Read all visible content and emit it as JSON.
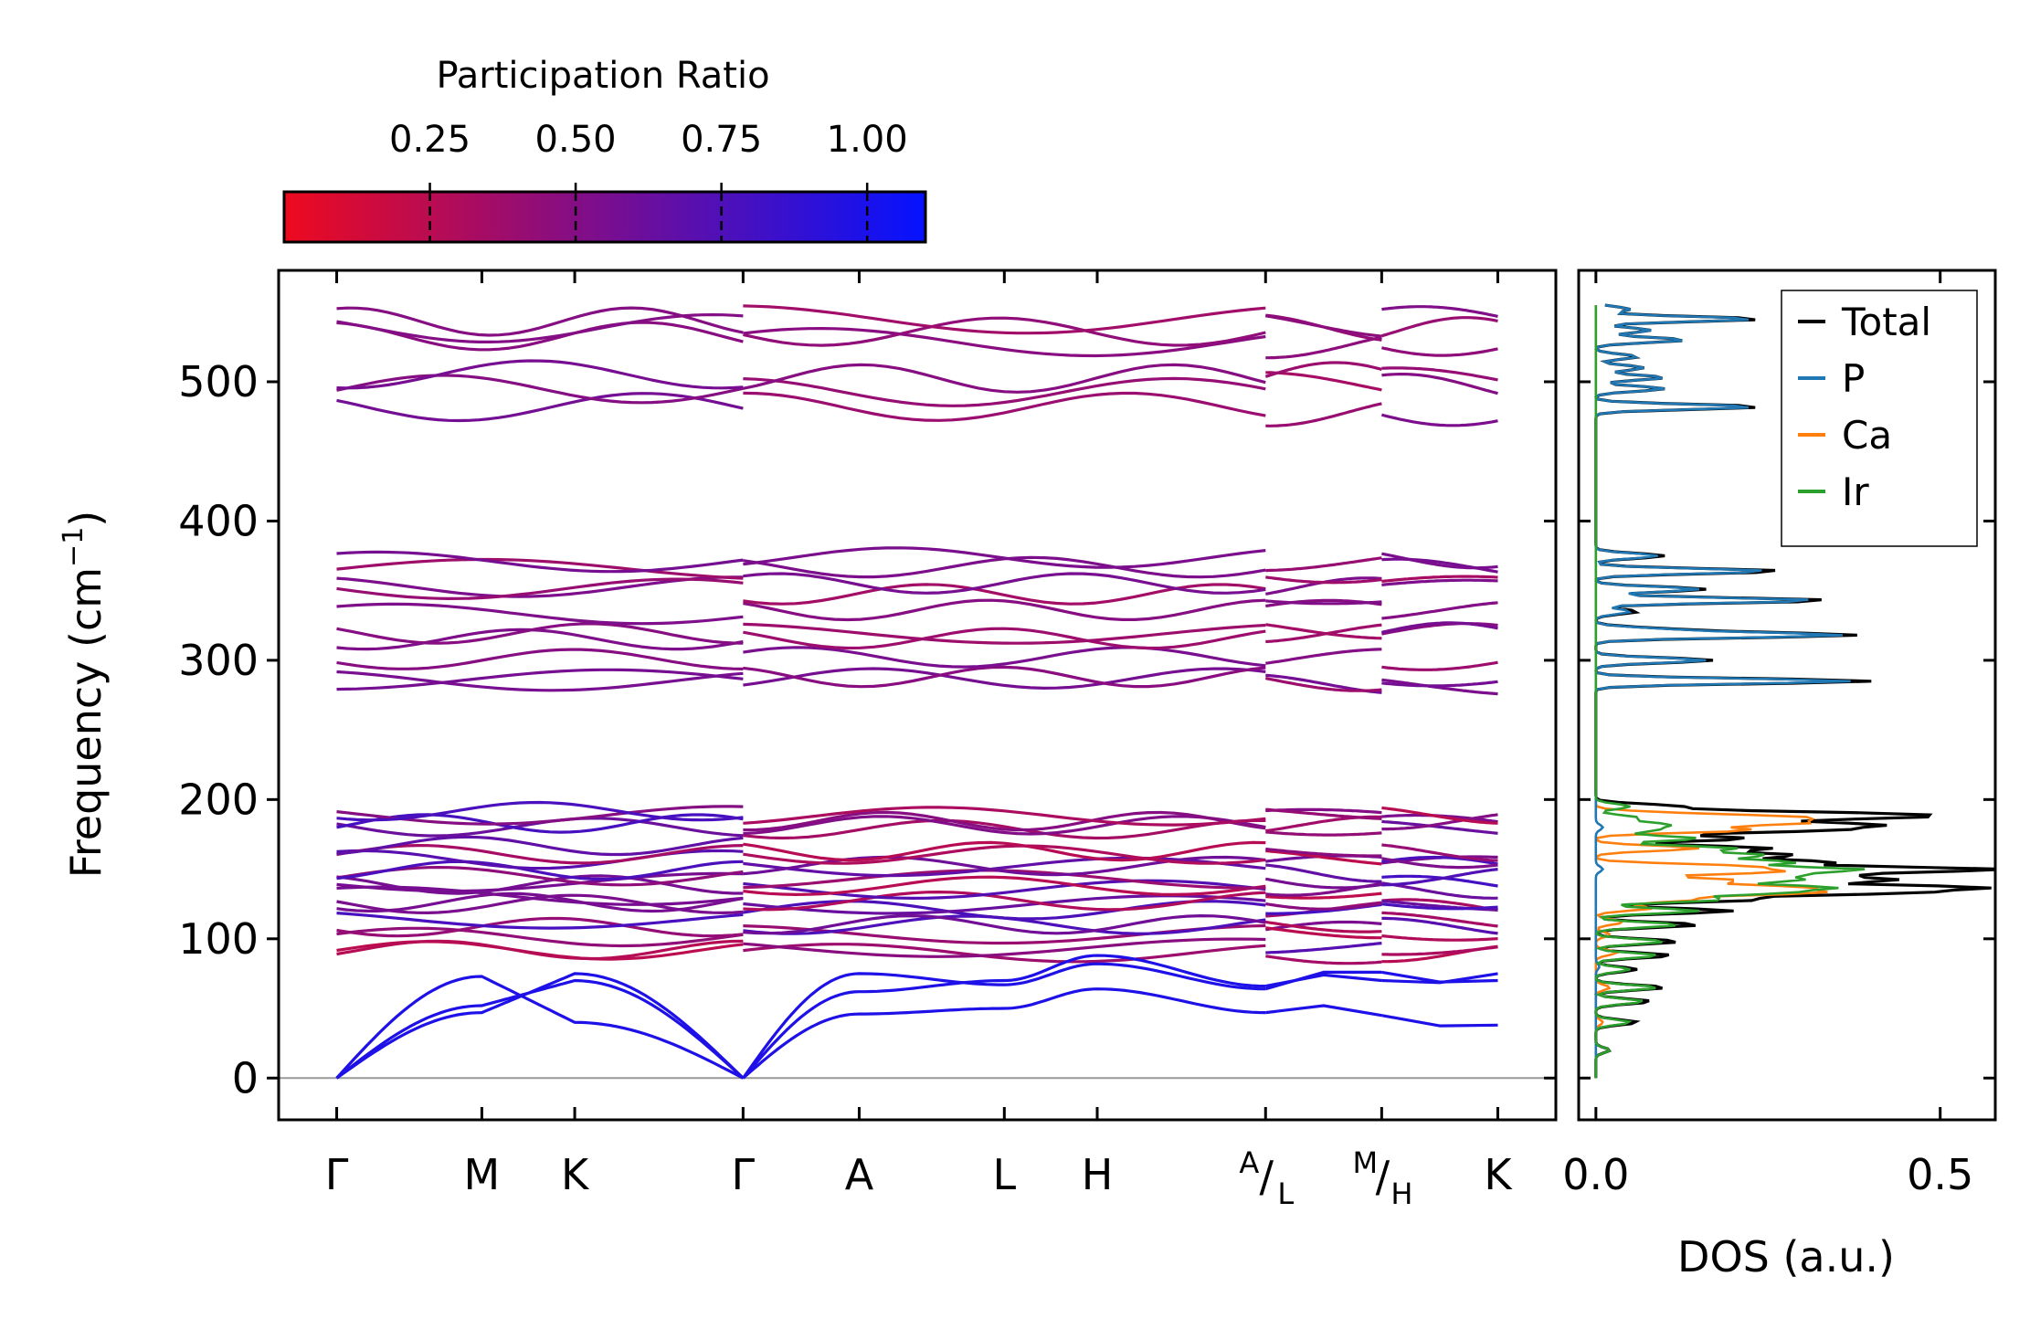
{
  "chart_data": [
    {
      "type": "line",
      "name": "phonon-band-structure",
      "ylabel_main": "Frequency (cm",
      "ylabel_sup": "−1",
      "ylabel_close": ")",
      "ylim": [
        -30,
        580
      ],
      "yticks": [
        0,
        100,
        200,
        300,
        400,
        500
      ],
      "ytick_labels": [
        "0",
        "100",
        "200",
        "300",
        "400",
        "500"
      ],
      "kpoints": [
        {
          "label": "Γ",
          "x": 0.0
        },
        {
          "label": "M",
          "x": 1.25
        },
        {
          "label": "K",
          "x": 2.05
        },
        {
          "label": "Γ",
          "x": 3.5
        },
        {
          "label": "A",
          "x": 4.5
        },
        {
          "label": "L",
          "x": 5.75
        },
        {
          "label": "H",
          "x": 6.55
        },
        {
          "label_top": "A",
          "label_bottom": "L",
          "x": 8.0
        },
        {
          "label_top": "M",
          "label_bottom": "H",
          "x": 9.0
        },
        {
          "label": "K",
          "x": 10.0
        }
      ],
      "xlim": [
        -0.5,
        10.5
      ],
      "segments": [
        [
          0,
          3.5
        ],
        [
          3.5,
          8.0
        ],
        [
          8.0,
          9.0
        ],
        [
          9.0,
          10.0
        ]
      ],
      "zero_line": 0,
      "colorbar": {
        "title": "Participation Ratio",
        "range": [
          0.0,
          1.1
        ],
        "ticks": [
          0.25,
          0.5,
          0.75,
          1.0
        ],
        "tick_labels": [
          "0.25",
          "0.50",
          "0.75",
          "1.00"
        ],
        "color_low": "#ee0a1f",
        "color_high": "#0512ff"
      },
      "acoustic_endpoints": {
        "M": [
          52,
          47,
          73
        ],
        "K": [
          70,
          75,
          40
        ],
        "A": [
          75,
          62,
          46
        ],
        "L": [
          67,
          70,
          50
        ],
        "H": [
          82,
          88,
          64
        ],
        "AL": [
          64,
          66,
          47
        ],
        "MH": [
          76,
          70,
          45
        ],
        "K2": [
          70,
          75,
          38
        ]
      },
      "band_groups": {
        "low_optical": [
          90,
          95,
          103,
          107,
          112,
          122,
          126,
          130,
          136,
          140,
          145,
          150,
          155,
          160,
          165,
          178,
          183,
          187,
          190
        ],
        "mid_optical": [
          285,
          288,
          300,
          318,
          322,
          335,
          350,
          353,
          365,
          372
        ],
        "high_optical": [
          481,
          495,
          503,
          530,
          537,
          542
        ]
      }
    },
    {
      "type": "line",
      "name": "dos-panel",
      "xlabel": "DOS (a.u.)",
      "xlim": [
        -0.025,
        0.58
      ],
      "ylim": [
        -30,
        580
      ],
      "xticks": [
        0.0,
        0.5
      ],
      "xtick_labels": [
        "0.0",
        "0.5"
      ],
      "legend_position": "top-right",
      "series": [
        {
          "name": "Total",
          "color": "#000000",
          "peaks": [
            [
              20,
              0.02
            ],
            [
              40,
              0.06
            ],
            [
              55,
              0.08
            ],
            [
              65,
              0.1
            ],
            [
              78,
              0.06
            ],
            [
              88,
              0.11
            ],
            [
              98,
              0.12
            ],
            [
              110,
              0.15
            ],
            [
              120,
              0.2
            ],
            [
              128,
              0.23
            ],
            [
              133,
              0.42
            ],
            [
              137,
              0.52
            ],
            [
              142,
              0.4
            ],
            [
              146,
              0.3
            ],
            [
              150,
              0.56
            ],
            [
              155,
              0.33
            ],
            [
              160,
              0.28
            ],
            [
              165,
              0.25
            ],
            [
              172,
              0.22
            ],
            [
              178,
              0.32
            ],
            [
              182,
              0.38
            ],
            [
              187,
              0.36
            ],
            [
              190,
              0.33
            ],
            [
              195,
              0.12
            ],
            [
              285,
              0.4
            ],
            [
              300,
              0.17
            ],
            [
              318,
              0.37
            ],
            [
              322,
              0.1
            ],
            [
              335,
              0.06
            ],
            [
              343,
              0.34
            ],
            [
              351,
              0.16
            ],
            [
              364,
              0.27
            ],
            [
              375,
              0.1
            ],
            [
              482,
              0.24
            ],
            [
              495,
              0.1
            ],
            [
              503,
              0.1
            ],
            [
              510,
              0.07
            ],
            [
              518,
              0.06
            ],
            [
              530,
              0.13
            ],
            [
              537,
              0.08
            ],
            [
              545,
              0.24
            ],
            [
              552,
              0.05
            ]
          ]
        },
        {
          "name": "P",
          "color": "#1f77b4",
          "peaks": [
            [
              80,
              0.005
            ],
            [
              150,
              0.01
            ],
            [
              180,
              0.01
            ],
            [
              285,
              0.37
            ],
            [
              300,
              0.16
            ],
            [
              318,
              0.35
            ],
            [
              322,
              0.09
            ],
            [
              335,
              0.05
            ],
            [
              343,
              0.32
            ],
            [
              351,
              0.15
            ],
            [
              364,
              0.25
            ],
            [
              375,
              0.09
            ],
            [
              482,
              0.23
            ],
            [
              495,
              0.1
            ],
            [
              503,
              0.1
            ],
            [
              510,
              0.07
            ],
            [
              518,
              0.06
            ],
            [
              530,
              0.13
            ],
            [
              537,
              0.08
            ],
            [
              545,
              0.23
            ],
            [
              552,
              0.05
            ]
          ]
        },
        {
          "name": "Ca",
          "color": "#ff7f0e",
          "peaks": [
            [
              40,
              0.01
            ],
            [
              65,
              0.02
            ],
            [
              90,
              0.03
            ],
            [
              103,
              0.02
            ],
            [
              112,
              0.04
            ],
            [
              122,
              0.08
            ],
            [
              128,
              0.14
            ],
            [
              133,
              0.3
            ],
            [
              137,
              0.28
            ],
            [
              142,
              0.2
            ],
            [
              148,
              0.25
            ],
            [
              152,
              0.21
            ],
            [
              165,
              0.15
            ],
            [
              178,
              0.22
            ],
            [
              183,
              0.28
            ],
            [
              187,
              0.27
            ],
            [
              190,
              0.08
            ]
          ]
        },
        {
          "name": "Ir",
          "color": "#2ca02c",
          "peaks": [
            [
              20,
              0.02
            ],
            [
              40,
              0.05
            ],
            [
              55,
              0.07
            ],
            [
              65,
              0.09
            ],
            [
              78,
              0.05
            ],
            [
              88,
              0.09
            ],
            [
              98,
              0.1
            ],
            [
              110,
              0.12
            ],
            [
              120,
              0.15
            ],
            [
              128,
              0.18
            ],
            [
              133,
              0.25
            ],
            [
              137,
              0.32
            ],
            [
              142,
              0.27
            ],
            [
              146,
              0.25
            ],
            [
              150,
              0.36
            ],
            [
              155,
              0.28
            ],
            [
              160,
              0.24
            ],
            [
              165,
              0.2
            ],
            [
              172,
              0.15
            ],
            [
              178,
              0.08
            ],
            [
              182,
              0.1
            ],
            [
              187,
              0.06
            ],
            [
              195,
              0.05
            ]
          ]
        }
      ]
    }
  ]
}
